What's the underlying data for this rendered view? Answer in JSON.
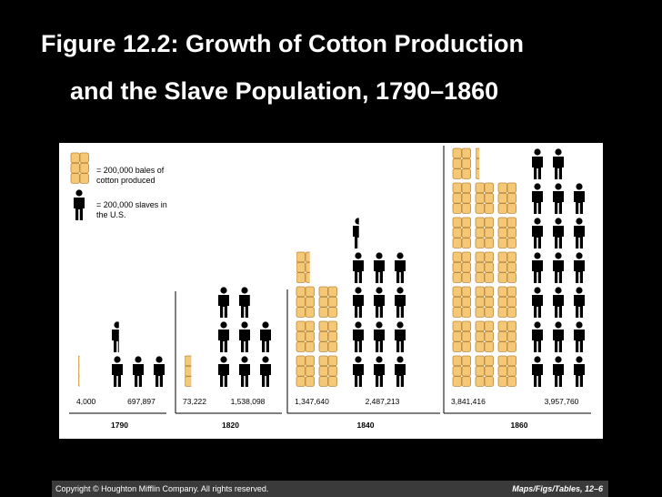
{
  "chart_data": {
    "type": "pictograph",
    "title": [
      "Figure 12.2: Growth of Cotton Production",
      "and the Slave Population, 1790–1860"
    ],
    "unit": 200000,
    "categories": [
      "1790",
      "1820",
      "1840",
      "1860"
    ],
    "series": [
      {
        "name": "= 200,000 bales of cotton produced",
        "color": "#f5c878",
        "values": [
          4000,
          73222,
          1347640,
          3841416
        ],
        "value_labels": [
          "4,000",
          "73,222",
          "1,347,640",
          "3,841,416"
        ]
      },
      {
        "name": "= 200,000 slaves in the U.S.",
        "color": "#000000",
        "values": [
          697897,
          1538098,
          2487213,
          3957760
        ],
        "value_labels": [
          "697,897",
          "1,538,098",
          "2,487,213",
          "3,957,760"
        ]
      }
    ]
  },
  "footer": {
    "copyright": "Copyright © Houghton Mifflin Company. All rights reserved.",
    "reference": "Maps/Figs/Tables, 12–6"
  }
}
